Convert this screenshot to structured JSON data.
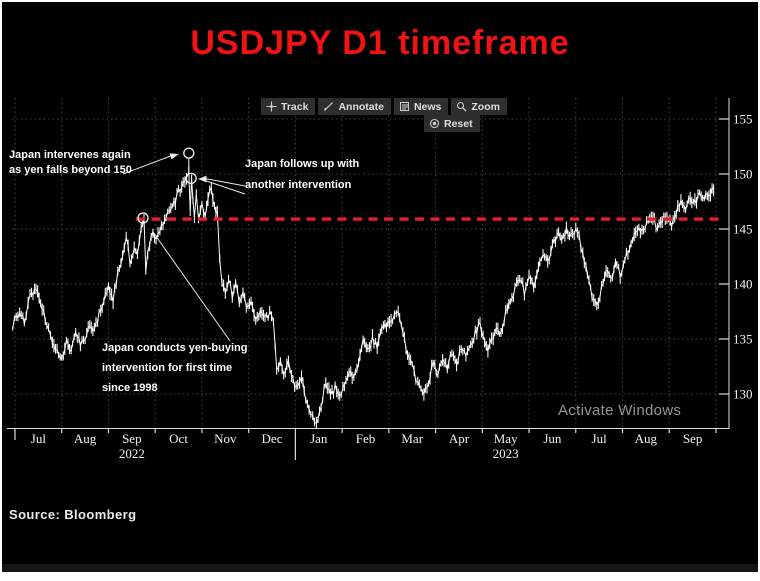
{
  "window": {
    "title_banner": "USDJPY D1 timeframe",
    "source_label": "Source: Bloomberg",
    "watermark": "Activate Windows"
  },
  "toolbar": {
    "buttons": [
      {
        "label": "Track",
        "icon": "track-crosshair-icon"
      },
      {
        "label": "Annotate",
        "icon": "annotate-pencil-icon"
      },
      {
        "label": "News",
        "icon": "news-document-icon"
      },
      {
        "label": "Zoom",
        "icon": "zoom-magnifier-icon"
      }
    ],
    "reset_label": "Reset",
    "reset_icon": "reset-target-icon"
  },
  "annotations": [
    {
      "text": "Japan intervenes again\nas yen falls beyond 150"
    },
    {
      "text": "Japan follows up with\nanother intervention"
    },
    {
      "text": "Japan conducts yen-buying\nintervention for first time\nsince 1998"
    }
  ],
  "chart_data": {
    "type": "candlestick",
    "title": "USDJPY D1 timeframe",
    "symbol": "USDJPY",
    "timeframe": "D1",
    "y_axis_side": "right",
    "ylim": [
      126.5,
      156
    ],
    "y_ticks": [
      130,
      135,
      140,
      145,
      150,
      155
    ],
    "grid": "dotted",
    "x_months": [
      {
        "label": "Jul"
      },
      {
        "label": "Aug"
      },
      {
        "label": "Sep",
        "year": "2022"
      },
      {
        "label": "Oct"
      },
      {
        "label": "Nov"
      },
      {
        "label": "Dec"
      },
      {
        "label": "Jan"
      },
      {
        "label": "Feb"
      },
      {
        "label": "Mar"
      },
      {
        "label": "Apr"
      },
      {
        "label": "May",
        "year": "2023"
      },
      {
        "label": "Jun"
      },
      {
        "label": "Jul"
      },
      {
        "label": "Aug"
      },
      {
        "label": "Sep"
      }
    ],
    "support_line": {
      "price": 145.9,
      "style": "dashed",
      "color": "#e41e2d"
    },
    "markers": [
      {
        "t": 3.72,
        "price": 151.9,
        "stem_to": 150.2,
        "event": "Japan intervenes again as yen falls beyond 150"
      },
      {
        "t": 3.77,
        "price": 149.6,
        "event": "Japan follows up with another intervention"
      },
      {
        "t": 2.74,
        "price": 146.0,
        "event": "Japan conducts yen-buying intervention for first time since 1998"
      }
    ],
    "price_path": [
      [
        -0.05,
        136.3
      ],
      [
        0.1,
        137.6
      ],
      [
        0.2,
        136.6
      ],
      [
        0.32,
        138.7
      ],
      [
        0.45,
        139.5
      ],
      [
        0.55,
        138.2
      ],
      [
        0.68,
        136.4
      ],
      [
        0.8,
        134.9
      ],
      [
        0.9,
        133.8
      ],
      [
        1.0,
        132.9
      ],
      [
        1.1,
        134.9
      ],
      [
        1.2,
        133.9
      ],
      [
        1.3,
        135.5
      ],
      [
        1.4,
        134.6
      ],
      [
        1.5,
        135.2
      ],
      [
        1.6,
        136.3
      ],
      [
        1.7,
        135.7
      ],
      [
        1.8,
        137.2
      ],
      [
        1.9,
        138.3
      ],
      [
        2.0,
        139.8
      ],
      [
        2.1,
        138.6
      ],
      [
        2.2,
        140.9
      ],
      [
        2.3,
        142.6
      ],
      [
        2.38,
        144.3
      ],
      [
        2.46,
        142.1
      ],
      [
        2.55,
        143.2
      ],
      [
        2.62,
        142.4
      ],
      [
        2.7,
        144.8
      ],
      [
        2.76,
        145.9
      ],
      [
        2.8,
        141.3
      ],
      [
        2.88,
        143.8
      ],
      [
        2.95,
        144.5
      ],
      [
        3.02,
        143.9
      ],
      [
        3.1,
        144.8
      ],
      [
        3.2,
        145.6
      ],
      [
        3.3,
        146.9
      ],
      [
        3.4,
        147.4
      ],
      [
        3.5,
        148.3
      ],
      [
        3.6,
        149.2
      ],
      [
        3.67,
        149.9
      ],
      [
        3.72,
        150.4
      ],
      [
        3.75,
        146.6
      ],
      [
        3.78,
        149.6
      ],
      [
        3.84,
        146.1
      ],
      [
        3.88,
        148.2
      ],
      [
        3.93,
        145.9
      ],
      [
        4.0,
        147.2
      ],
      [
        4.07,
        146.4
      ],
      [
        4.13,
        147.9
      ],
      [
        4.2,
        148.4
      ],
      [
        4.27,
        146.9
      ],
      [
        4.33,
        146.3
      ],
      [
        4.38,
        142.0
      ],
      [
        4.43,
        140.3
      ],
      [
        4.5,
        138.9
      ],
      [
        4.57,
        140.7
      ],
      [
        4.65,
        139.0
      ],
      [
        4.72,
        140.2
      ],
      [
        4.8,
        138.1
      ],
      [
        4.88,
        139.4
      ],
      [
        4.95,
        137.9
      ],
      [
        5.05,
        138.4
      ],
      [
        5.15,
        136.7
      ],
      [
        5.25,
        137.4
      ],
      [
        5.35,
        136.8
      ],
      [
        5.45,
        137.2
      ],
      [
        5.53,
        136.5
      ],
      [
        5.6,
        131.9
      ],
      [
        5.68,
        132.9
      ],
      [
        5.75,
        131.5
      ],
      [
        5.85,
        133.1
      ],
      [
        5.95,
        131.2
      ],
      [
        6.05,
        130.5
      ],
      [
        6.13,
        131.8
      ],
      [
        6.22,
        129.4
      ],
      [
        6.33,
        128.2
      ],
      [
        6.45,
        127.4
      ],
      [
        6.55,
        128.9
      ],
      [
        6.65,
        131.1
      ],
      [
        6.75,
        129.8
      ],
      [
        6.85,
        130.6
      ],
      [
        6.95,
        129.9
      ],
      [
        7.05,
        130.8
      ],
      [
        7.15,
        132.2
      ],
      [
        7.25,
        131.3
      ],
      [
        7.35,
        133.0
      ],
      [
        7.45,
        134.7
      ],
      [
        7.55,
        133.8
      ],
      [
        7.65,
        135.0
      ],
      [
        7.75,
        134.2
      ],
      [
        7.85,
        136.1
      ],
      [
        7.95,
        136.4
      ],
      [
        8.08,
        136.9
      ],
      [
        8.2,
        137.8
      ],
      [
        8.3,
        135.5
      ],
      [
        8.4,
        133.6
      ],
      [
        8.5,
        132.4
      ],
      [
        8.62,
        131.0
      ],
      [
        8.75,
        129.9
      ],
      [
        8.85,
        131.2
      ],
      [
        8.95,
        132.7
      ],
      [
        9.05,
        131.7
      ],
      [
        9.15,
        133.3
      ],
      [
        9.25,
        132.1
      ],
      [
        9.35,
        133.8
      ],
      [
        9.45,
        132.9
      ],
      [
        9.55,
        134.4
      ],
      [
        9.65,
        133.5
      ],
      [
        9.75,
        134.2
      ],
      [
        9.85,
        135.5
      ],
      [
        9.95,
        136.3
      ],
      [
        10.05,
        134.8
      ],
      [
        10.12,
        133.9
      ],
      [
        10.2,
        134.9
      ],
      [
        10.3,
        136.1
      ],
      [
        10.4,
        135.4
      ],
      [
        10.5,
        137.3
      ],
      [
        10.6,
        138.4
      ],
      [
        10.7,
        139.7
      ],
      [
        10.8,
        140.4
      ],
      [
        10.9,
        139.3
      ],
      [
        11.0,
        140.8
      ],
      [
        11.1,
        139.5
      ],
      [
        11.2,
        141.6
      ],
      [
        11.3,
        142.8
      ],
      [
        11.4,
        141.9
      ],
      [
        11.5,
        143.4
      ],
      [
        11.6,
        144.6
      ],
      [
        11.7,
        143.8
      ],
      [
        11.8,
        144.9
      ],
      [
        11.9,
        144.3
      ],
      [
        12.0,
        145.0
      ],
      [
        12.07,
        144.4
      ],
      [
        12.15,
        142.5
      ],
      [
        12.25,
        140.9
      ],
      [
        12.35,
        138.9
      ],
      [
        12.45,
        137.8
      ],
      [
        12.55,
        139.6
      ],
      [
        12.65,
        141.5
      ],
      [
        12.75,
        140.3
      ],
      [
        12.85,
        141.9
      ],
      [
        12.95,
        140.8
      ],
      [
        13.05,
        142.3
      ],
      [
        13.15,
        143.1
      ],
      [
        13.25,
        144.5
      ],
      [
        13.35,
        145.2
      ],
      [
        13.45,
        144.6
      ],
      [
        13.55,
        145.9
      ],
      [
        13.65,
        146.3
      ],
      [
        13.75,
        144.8
      ],
      [
        13.85,
        145.6
      ],
      [
        13.95,
        146.2
      ],
      [
        14.05,
        145.4
      ],
      [
        14.15,
        146.7
      ],
      [
        14.25,
        147.4
      ],
      [
        14.35,
        146.9
      ],
      [
        14.45,
        147.8
      ],
      [
        14.55,
        147.5
      ],
      [
        14.65,
        148.0
      ],
      [
        14.75,
        147.7
      ],
      [
        14.85,
        148.3
      ],
      [
        14.95,
        148.6
      ]
    ]
  }
}
